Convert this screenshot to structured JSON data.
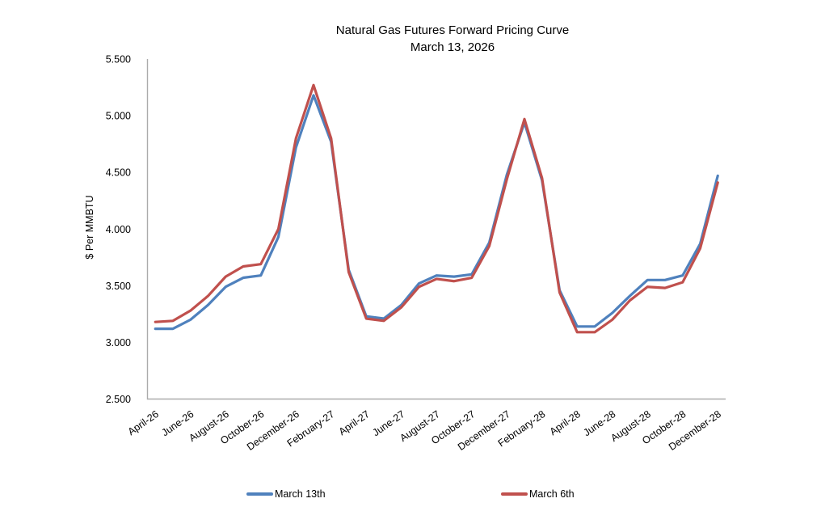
{
  "chart_data": {
    "type": "line",
    "title": "Natural Gas Futures Forward Pricing Curve",
    "subtitle": "March 13, 2026",
    "ylabel": "$ Per MMBTU",
    "ylim": [
      2.5,
      5.5
    ],
    "grid": false,
    "legend_position": "bottom",
    "ytick_values": [
      5.5,
      5.0,
      4.5,
      4.0,
      3.5,
      3.0,
      2.5
    ],
    "ytick_labels": [
      "5.500",
      "5.000",
      "4.500",
      "4.000",
      "3.500",
      "3.000",
      "2.500"
    ],
    "x": [
      "April-26",
      "May-26",
      "June-26",
      "July-26",
      "August-26",
      "September-26",
      "October-26",
      "November-26",
      "December-26",
      "January-27",
      "February-27",
      "March-27",
      "April-27",
      "May-27",
      "June-27",
      "July-27",
      "August-27",
      "September-27",
      "October-27",
      "November-27",
      "December-27",
      "January-28",
      "February-28",
      "March-28",
      "April-28",
      "May-28",
      "June-28",
      "July-28",
      "August-28",
      "September-28",
      "October-28",
      "November-28",
      "December-28"
    ],
    "x_tick_labels": [
      "April-26",
      "June-26",
      "August-26",
      "October-26",
      "December-26",
      "February-27",
      "April-27",
      "June-27",
      "August-27",
      "October-27",
      "December-27",
      "February-28",
      "April-28",
      "June-28",
      "August-28",
      "October-28",
      "December-28"
    ],
    "series": [
      {
        "name": "March 13th",
        "color": "#4F81BD",
        "values": [
          3.12,
          3.12,
          3.2,
          3.33,
          3.49,
          3.57,
          3.59,
          3.93,
          4.72,
          5.18,
          4.77,
          3.64,
          3.23,
          3.21,
          3.33,
          3.52,
          3.59,
          3.58,
          3.6,
          3.88,
          4.48,
          4.94,
          4.43,
          3.46,
          3.14,
          3.14,
          3.26,
          3.41,
          3.55,
          3.55,
          3.59,
          3.87,
          4.47
        ]
      },
      {
        "name": "March 6th",
        "color": "#C0504D",
        "values": [
          3.18,
          3.19,
          3.28,
          3.41,
          3.58,
          3.67,
          3.69,
          4.0,
          4.8,
          5.27,
          4.8,
          3.62,
          3.21,
          3.19,
          3.31,
          3.49,
          3.56,
          3.54,
          3.57,
          3.85,
          4.44,
          4.97,
          4.45,
          3.44,
          3.09,
          3.09,
          3.2,
          3.37,
          3.49,
          3.48,
          3.53,
          3.83,
          4.41
        ]
      }
    ],
    "axis_color": "#ABABAB"
  }
}
